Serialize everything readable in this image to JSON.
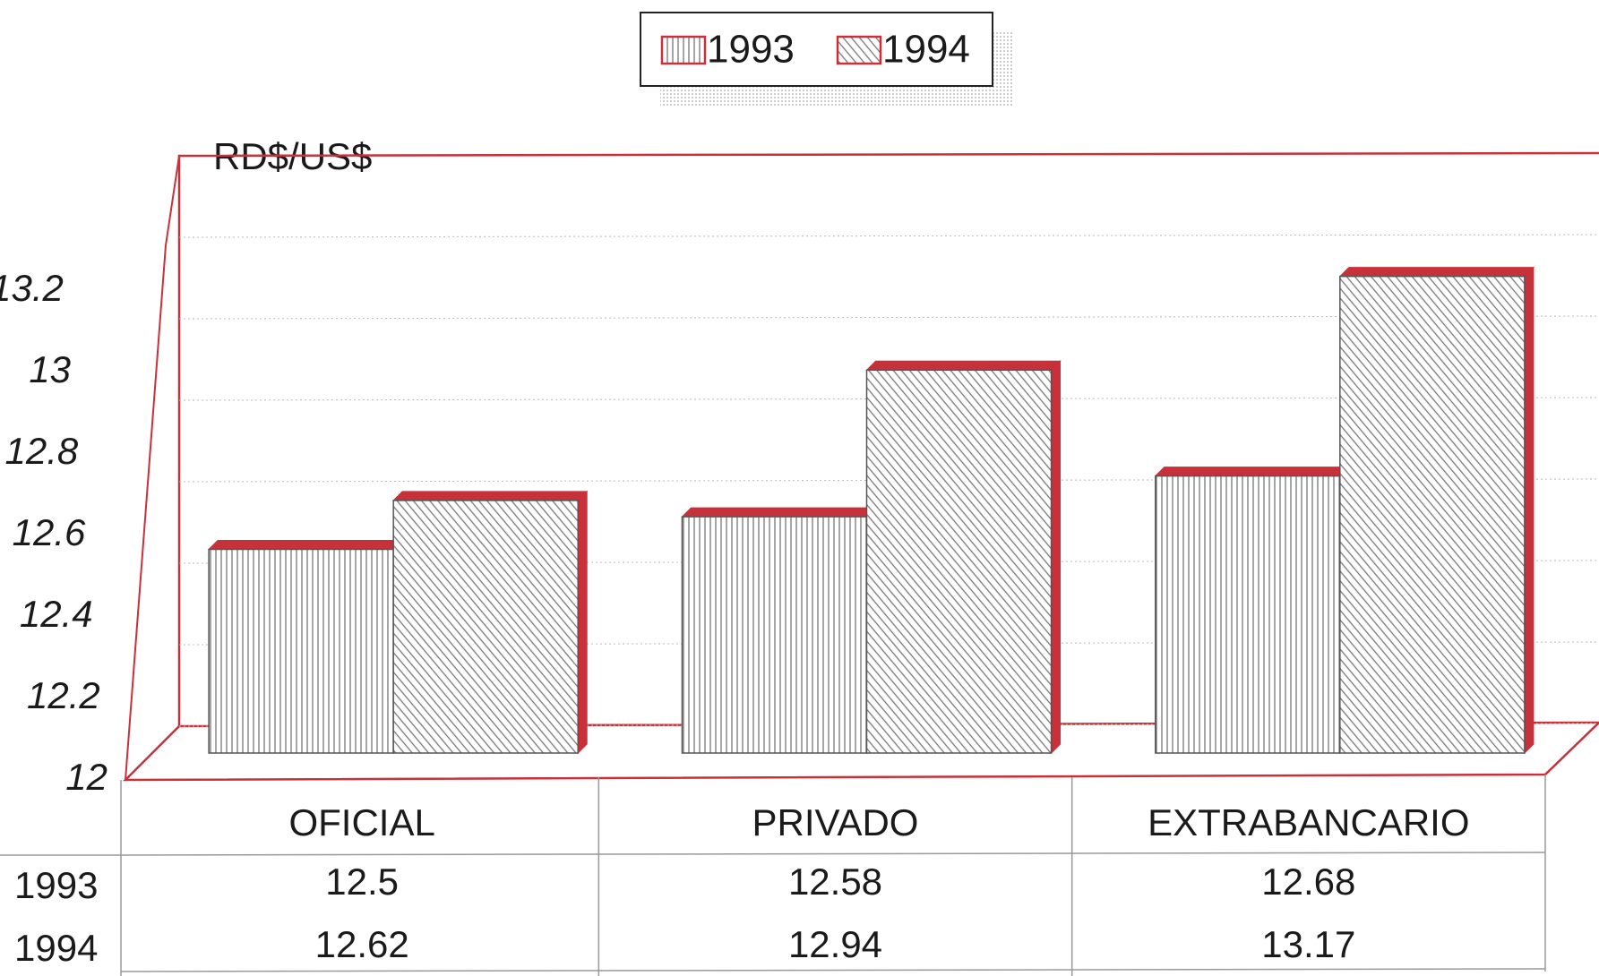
{
  "chart_data": {
    "type": "bar3d",
    "ylabel": "RD$/US$",
    "categories": [
      "OFICIAL",
      "PRIVADO",
      "EXTRABANCARIO"
    ],
    "series": [
      {
        "name": "1993",
        "color": "#c8303a",
        "pattern": "vertical",
        "values": [
          12.5,
          12.58,
          12.68
        ]
      },
      {
        "name": "1994",
        "color": "#c8303a",
        "pattern": "diagonal",
        "values": [
          12.62,
          12.94,
          13.17
        ]
      }
    ],
    "ylim": [
      12,
      13.4
    ],
    "yticks": [
      12,
      12.2,
      12.4,
      12.6,
      12.8,
      13,
      13.2
    ],
    "grid": true,
    "legend": "top",
    "data_table": true
  }
}
